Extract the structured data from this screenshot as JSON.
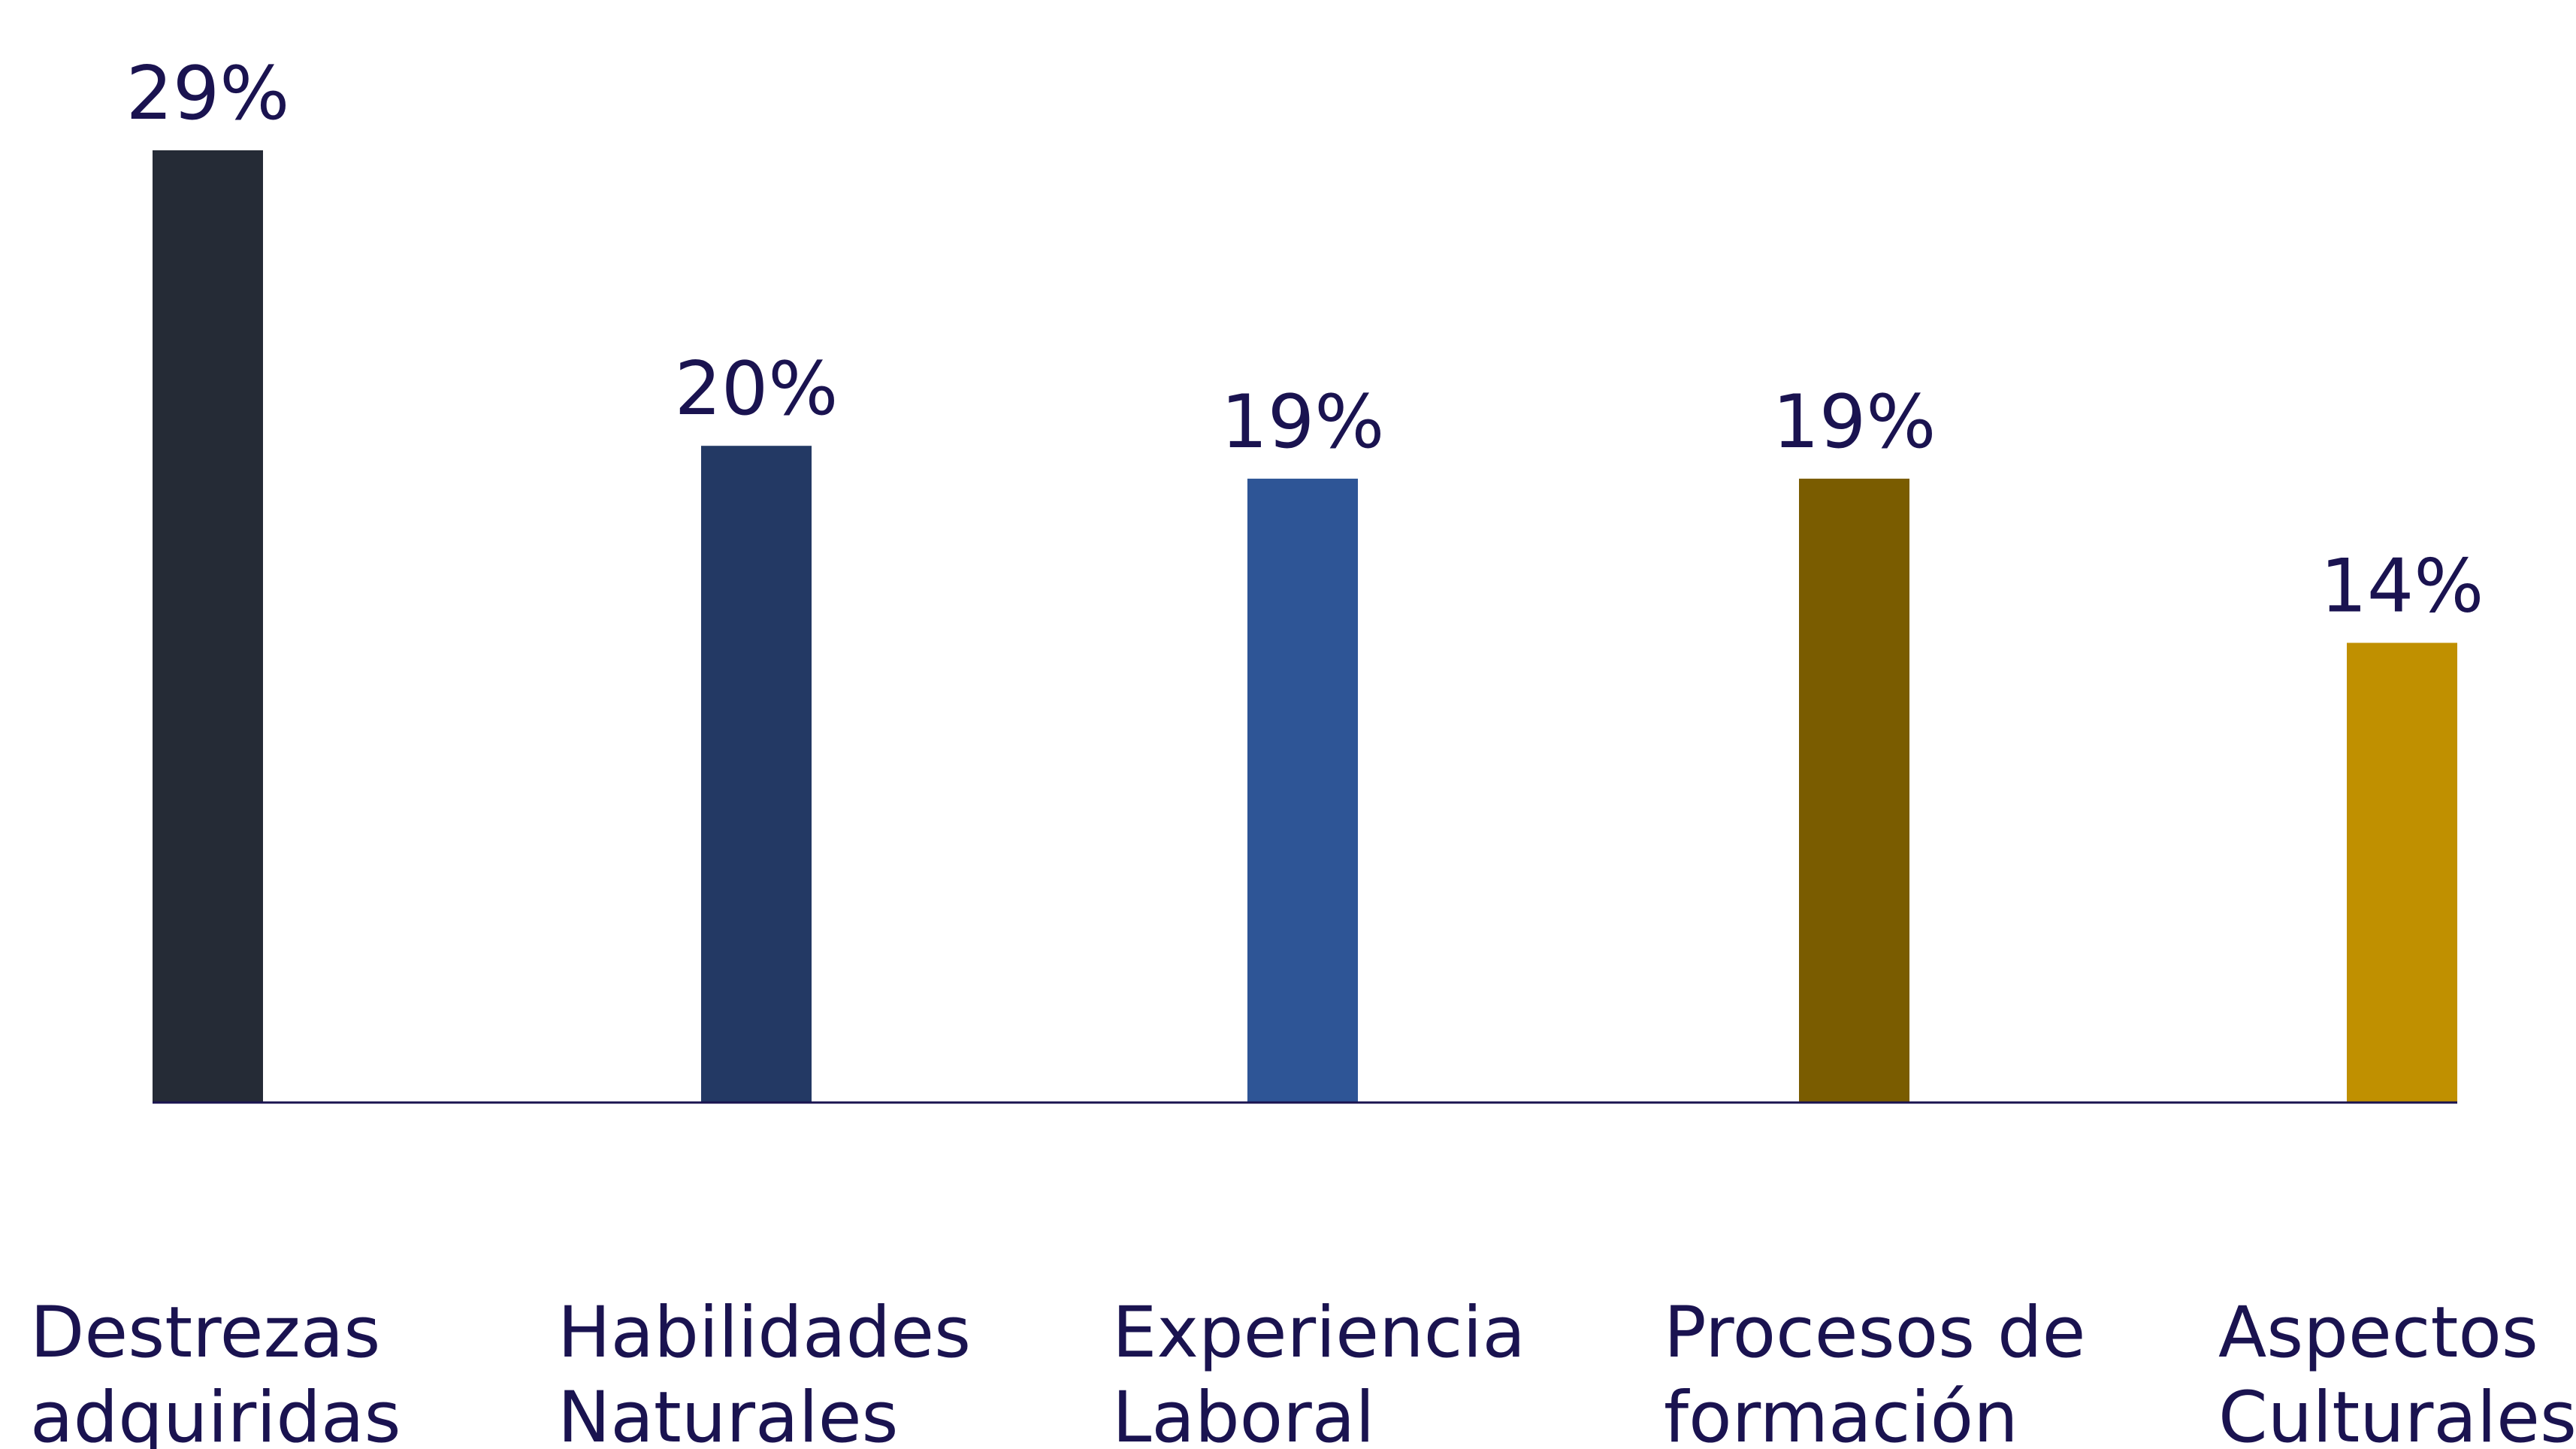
{
  "chart_data": {
    "type": "bar",
    "title": "",
    "xlabel": "",
    "ylabel": "",
    "ylim": [
      0,
      29
    ],
    "grid": false,
    "legend": "none",
    "categories": [
      [
        "Destrezas",
        "adquiridas"
      ],
      [
        "Habilidades",
        "Naturales"
      ],
      [
        "Experiencia",
        "Laboral"
      ],
      [
        "Procesos de",
        "formación"
      ],
      [
        "Aspectos",
        "Culturales"
      ]
    ],
    "values": [
      29,
      20,
      19,
      19,
      14
    ],
    "data_labels": [
      "29%",
      "20%",
      "19%",
      "19%",
      "14%"
    ],
    "colors": [
      "#252b36",
      "#233964",
      "#2e5596",
      "#7a5c00",
      "#c09000"
    ],
    "axis_color": "#1a1350",
    "text_color": "#1a1350"
  }
}
